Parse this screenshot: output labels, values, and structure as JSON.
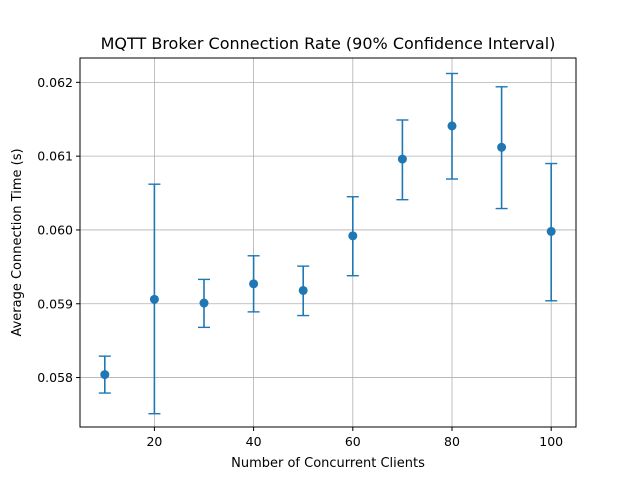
{
  "chart_data": {
    "type": "scatter",
    "title": "MQTT Broker Connection Rate (90% Confidence Interval)",
    "xlabel": "Number of Concurrent Clients",
    "ylabel": "Average Connection Time (s)",
    "xlim": [
      5,
      105
    ],
    "ylim": [
      0.05733,
      0.06233
    ],
    "xticks": [
      20,
      40,
      60,
      80,
      100
    ],
    "yticks": [
      0.058,
      0.059,
      0.06,
      0.061,
      0.062
    ],
    "ytick_labels": [
      "0.058",
      "0.059",
      "0.060",
      "0.061",
      "0.062"
    ],
    "grid": true,
    "error_bars": true,
    "series_color": "#1f77b4",
    "points": [
      {
        "x": 10,
        "y": 0.05804,
        "low": 0.05779,
        "high": 0.05829
      },
      {
        "x": 20,
        "y": 0.05906,
        "low": 0.05751,
        "high": 0.06062
      },
      {
        "x": 30,
        "y": 0.05901,
        "low": 0.05868,
        "high": 0.05933
      },
      {
        "x": 40,
        "y": 0.05927,
        "low": 0.05889,
        "high": 0.05965
      },
      {
        "x": 50,
        "y": 0.05918,
        "low": 0.05884,
        "high": 0.05951
      },
      {
        "x": 60,
        "y": 0.05992,
        "low": 0.05938,
        "high": 0.06045
      },
      {
        "x": 70,
        "y": 0.06096,
        "low": 0.06041,
        "high": 0.06149
      },
      {
        "x": 80,
        "y": 0.06141,
        "low": 0.06069,
        "high": 0.06212
      },
      {
        "x": 90,
        "y": 0.06112,
        "low": 0.06029,
        "high": 0.06194
      },
      {
        "x": 100,
        "y": 0.05998,
        "low": 0.05904,
        "high": 0.0609
      }
    ]
  }
}
